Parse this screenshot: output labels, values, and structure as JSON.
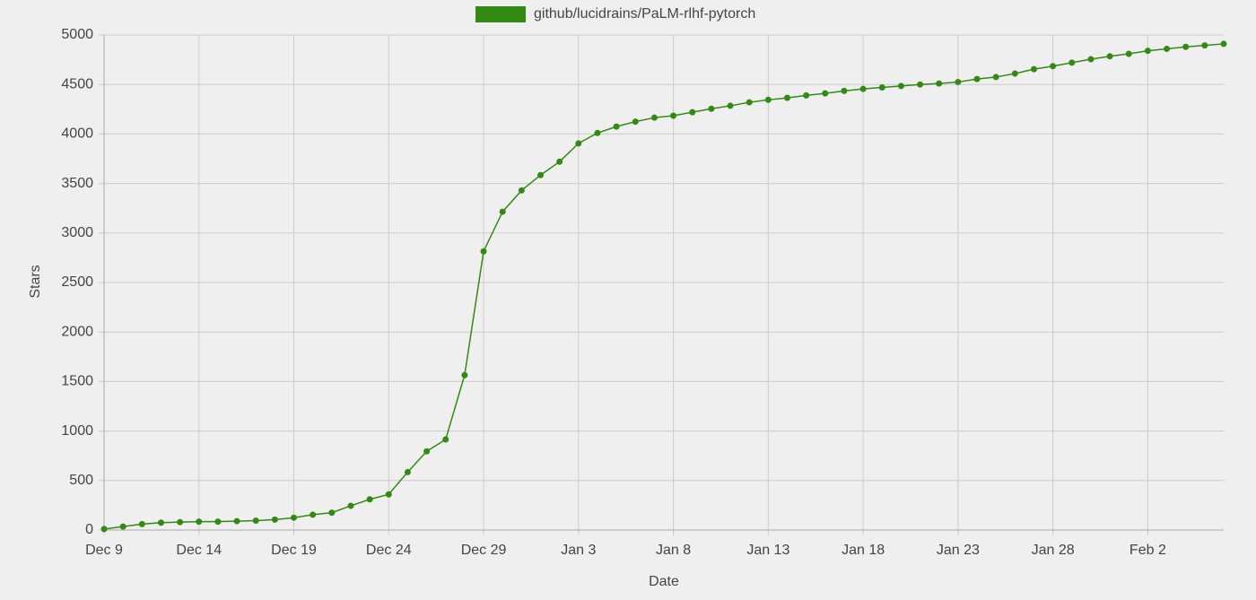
{
  "chart_data": {
    "type": "line",
    "x_label": "Date",
    "y_label": "Stars",
    "categories": [
      "Dec 9",
      null,
      null,
      null,
      null,
      "Dec 14",
      null,
      null,
      null,
      null,
      "Dec 19",
      null,
      null,
      null,
      null,
      "Dec 24",
      null,
      null,
      null,
      null,
      "Dec 29",
      null,
      null,
      null,
      null,
      "Jan 3",
      null,
      null,
      null,
      null,
      "Jan 8",
      null,
      null,
      null,
      null,
      "Jan 13",
      null,
      null,
      null,
      null,
      "Jan 18",
      null,
      null,
      null,
      null,
      "Jan 23",
      null,
      null,
      null,
      null,
      "Jan 28",
      null,
      null,
      null,
      null,
      "Feb 2",
      null,
      null,
      null,
      null
    ],
    "series": [
      {
        "name": "github/lucidrains/PaLM-rlhf-pytorch",
        "color": "#338a12",
        "values": [
          10,
          35,
          60,
          75,
          80,
          85,
          85,
          90,
          95,
          105,
          125,
          155,
          175,
          245,
          310,
          360,
          585,
          795,
          915,
          1565,
          2815,
          3215,
          3430,
          3585,
          3720,
          3905,
          4010,
          4075,
          4125,
          4165,
          4185,
          4220,
          4255,
          4285,
          4320,
          4345,
          4365,
          4390,
          4410,
          4435,
          4455,
          4470,
          4485,
          4500,
          4510,
          4525,
          4555,
          4575,
          4610,
          4655,
          4685,
          4720,
          4755,
          4785,
          4810,
          4840,
          4860,
          4880,
          4895,
          4910
        ]
      }
    ],
    "ylim": [
      0,
      5000
    ],
    "yticks": [
      0,
      500,
      1000,
      1500,
      2000,
      2500,
      3000,
      3500,
      4000,
      4500,
      5000
    ],
    "grid": true,
    "legend": "top"
  }
}
